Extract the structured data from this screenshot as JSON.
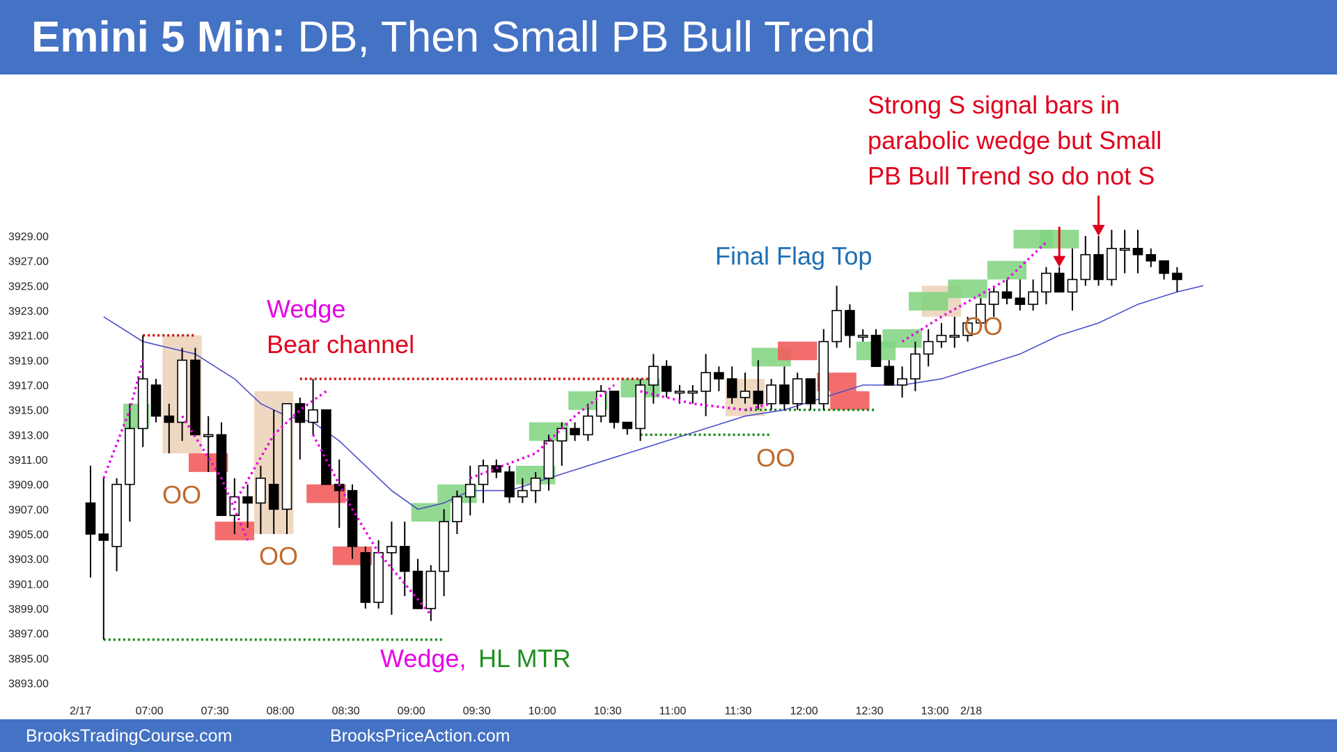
{
  "header": {
    "title_bold": "Emini 5 Min:",
    "title_rest": "DB, Then Small PB Bull Trend"
  },
  "footer": {
    "left": "BrooksTradingCourse.com",
    "right": "BrooksPriceAction.com"
  },
  "colors": {
    "header_bg": "#4472C4",
    "ema": "#4B4FC9",
    "bull_box": "#7FD37F",
    "bear_box": "#F25D5D",
    "oo_box": "#E9CBAE",
    "magenta": "#E600E6",
    "red_text": "#E0001B",
    "blue_text": "#1F6FB4",
    "orange_text": "#C0692A",
    "green_text": "#1F8F1F",
    "dotted_red": "#D01010",
    "dotted_green": "#1A8A1A"
  },
  "chart_data": {
    "type": "candlestick",
    "ylim": [
      3893,
      3931
    ],
    "y_ticks": [
      "3929.00",
      "3927.00",
      "3925.00",
      "3923.00",
      "3921.00",
      "3919.00",
      "3917.00",
      "3915.00",
      "3913.00",
      "3911.00",
      "3909.00",
      "3907.00",
      "3905.00",
      "3903.00",
      "3901.00",
      "3899.00",
      "3897.00",
      "3895.00",
      "3893.00"
    ],
    "x_ticks": [
      "2/17",
      "07:00",
      "07:30",
      "08:00",
      "08:30",
      "09:00",
      "09:30",
      "10:00",
      "10:30",
      "11:00",
      "11:30",
      "12:00",
      "12:30",
      "13:00",
      "2/18"
    ],
    "bars": [
      [
        3907.5,
        3910.5,
        3901.5,
        3905.0
      ],
      [
        3905.0,
        3909.5,
        3896.5,
        3904.5
      ],
      [
        3904.0,
        3909.5,
        3902.0,
        3909.0
      ],
      [
        3909.0,
        3915.5,
        3906.0,
        3913.5
      ],
      [
        3913.5,
        3921.0,
        3912.0,
        3917.5
      ],
      [
        3917.0,
        3917.5,
        3914.0,
        3914.5
      ],
      [
        3914.5,
        3915.5,
        3911.5,
        3914.0
      ],
      [
        3914.0,
        3920.0,
        3912.5,
        3919.0
      ],
      [
        3919.0,
        3920.0,
        3913.0,
        3913.0
      ],
      [
        3913.0,
        3914.5,
        3910.0,
        3913.0
      ],
      [
        3913.0,
        3914.0,
        3906.5,
        3906.5
      ],
      [
        3906.5,
        3909.5,
        3905.0,
        3908.0
      ],
      [
        3908.0,
        3909.0,
        3905.5,
        3907.5
      ],
      [
        3907.5,
        3910.5,
        3905.0,
        3909.5
      ],
      [
        3909.0,
        3915.0,
        3905.0,
        3907.0
      ],
      [
        3907.0,
        3915.5,
        3905.0,
        3915.5
      ],
      [
        3915.5,
        3916.0,
        3911.0,
        3914.0
      ],
      [
        3914.0,
        3917.5,
        3913.0,
        3915.0
      ],
      [
        3915.0,
        3915.0,
        3909.0,
        3909.0
      ],
      [
        3909.0,
        3911.0,
        3905.5,
        3908.5
      ],
      [
        3908.5,
        3909.0,
        3903.0,
        3904.0
      ],
      [
        3903.5,
        3904.0,
        3899.0,
        3899.5
      ],
      [
        3899.5,
        3904.5,
        3899.0,
        3903.5
      ],
      [
        3903.5,
        3906.0,
        3898.5,
        3904.0
      ],
      [
        3904.0,
        3906.0,
        3900.0,
        3902.0
      ],
      [
        3902.0,
        3903.0,
        3899.0,
        3899.0
      ],
      [
        3899.0,
        3902.5,
        3898.0,
        3902.0
      ],
      [
        3902.0,
        3907.0,
        3900.0,
        3906.0
      ],
      [
        3906.0,
        3908.5,
        3905.0,
        3908.0
      ],
      [
        3908.0,
        3910.5,
        3906.5,
        3909.0
      ],
      [
        3909.0,
        3911.0,
        3907.5,
        3910.5
      ],
      [
        3910.5,
        3911.0,
        3909.5,
        3910.0
      ],
      [
        3910.0,
        3910.5,
        3907.5,
        3908.0
      ],
      [
        3908.0,
        3909.5,
        3907.5,
        3908.5
      ],
      [
        3908.5,
        3910.0,
        3907.5,
        3909.5
      ],
      [
        3909.5,
        3913.0,
        3908.5,
        3912.5
      ],
      [
        3912.5,
        3914.0,
        3910.5,
        3913.5
      ],
      [
        3913.5,
        3914.0,
        3912.5,
        3913.0
      ],
      [
        3913.0,
        3915.5,
        3912.5,
        3914.5
      ],
      [
        3914.5,
        3917.0,
        3914.0,
        3916.5
      ],
      [
        3916.5,
        3916.5,
        3913.5,
        3914.0
      ],
      [
        3914.0,
        3914.0,
        3913.0,
        3913.5
      ],
      [
        3913.5,
        3917.5,
        3912.5,
        3917.0
      ],
      [
        3917.0,
        3919.5,
        3915.5,
        3918.5
      ],
      [
        3918.5,
        3919.0,
        3916.0,
        3916.5
      ],
      [
        3916.5,
        3917.0,
        3915.5,
        3916.5
      ],
      [
        3916.5,
        3917.0,
        3915.5,
        3916.5
      ],
      [
        3916.5,
        3919.5,
        3914.5,
        3918.0
      ],
      [
        3918.0,
        3918.5,
        3916.5,
        3917.5
      ],
      [
        3917.5,
        3918.5,
        3915.5,
        3916.0
      ],
      [
        3916.0,
        3918.0,
        3915.5,
        3916.5
      ],
      [
        3916.5,
        3919.0,
        3915.0,
        3915.5
      ],
      [
        3915.5,
        3917.5,
        3915.0,
        3917.0
      ],
      [
        3917.0,
        3918.5,
        3915.0,
        3915.5
      ],
      [
        3915.5,
        3918.0,
        3915.0,
        3917.5
      ],
      [
        3917.5,
        3917.5,
        3915.0,
        3915.5
      ],
      [
        3915.5,
        3921.5,
        3915.0,
        3920.5
      ],
      [
        3920.5,
        3925.0,
        3920.0,
        3923.0
      ],
      [
        3923.0,
        3923.5,
        3920.0,
        3921.0
      ],
      [
        3921.0,
        3921.5,
        3920.5,
        3921.0
      ],
      [
        3921.0,
        3921.5,
        3918.5,
        3918.5
      ],
      [
        3918.5,
        3919.0,
        3917.0,
        3917.0
      ],
      [
        3917.0,
        3918.5,
        3916.0,
        3917.5
      ],
      [
        3917.5,
        3920.5,
        3916.5,
        3919.5
      ],
      [
        3919.5,
        3921.5,
        3918.5,
        3920.5
      ],
      [
        3920.5,
        3922.0,
        3920.0,
        3921.0
      ],
      [
        3921.0,
        3922.5,
        3920.0,
        3921.0
      ],
      [
        3921.0,
        3922.5,
        3920.5,
        3922.0
      ],
      [
        3922.0,
        3924.0,
        3921.5,
        3923.5
      ],
      [
        3923.5,
        3925.0,
        3922.5,
        3924.5
      ],
      [
        3924.5,
        3925.5,
        3923.5,
        3924.0
      ],
      [
        3924.0,
        3925.5,
        3923.0,
        3923.5
      ],
      [
        3923.5,
        3925.5,
        3923.0,
        3924.5
      ],
      [
        3924.5,
        3926.5,
        3923.5,
        3926.0
      ],
      [
        3926.0,
        3926.5,
        3924.5,
        3924.5
      ],
      [
        3924.5,
        3928.0,
        3923.0,
        3925.5
      ],
      [
        3925.5,
        3929.0,
        3925.0,
        3927.5
      ],
      [
        3927.5,
        3929.0,
        3925.0,
        3925.5
      ],
      [
        3925.5,
        3929.5,
        3925.0,
        3928.0
      ],
      [
        3928.0,
        3929.5,
        3926.0,
        3928.0
      ],
      [
        3928.0,
        3929.5,
        3926.0,
        3927.5
      ],
      [
        3927.5,
        3928.0,
        3926.5,
        3927.0
      ],
      [
        3927.0,
        3927.0,
        3925.5,
        3926.0
      ],
      [
        3926.0,
        3926.5,
        3924.5,
        3925.5
      ]
    ],
    "ema": [
      [
        1,
        3922.5
      ],
      [
        4,
        3920.5
      ],
      [
        8,
        3919.5
      ],
      [
        11,
        3917.5
      ],
      [
        13,
        3915.5
      ],
      [
        15,
        3914.5
      ],
      [
        17,
        3914.0
      ],
      [
        19,
        3912.5
      ],
      [
        21,
        3910.5
      ],
      [
        23,
        3908.5
      ],
      [
        25,
        3907.0
      ],
      [
        27,
        3907.5
      ],
      [
        29,
        3908.5
      ],
      [
        32,
        3908.5
      ],
      [
        35,
        3909.5
      ],
      [
        38,
        3910.5
      ],
      [
        41,
        3911.5
      ],
      [
        44,
        3912.5
      ],
      [
        47,
        3913.5
      ],
      [
        50,
        3914.5
      ],
      [
        53,
        3915.0
      ],
      [
        56,
        3916.0
      ],
      [
        59,
        3917.0
      ],
      [
        62,
        3917.0
      ],
      [
        65,
        3917.5
      ],
      [
        68,
        3918.5
      ],
      [
        71,
        3919.5
      ],
      [
        74,
        3921.0
      ],
      [
        77,
        3922.0
      ],
      [
        80,
        3923.5
      ],
      [
        83,
        3924.5
      ],
      [
        85,
        3925.0
      ]
    ],
    "boxes": [
      {
        "kind": "bull",
        "b": 3,
        "w": 2,
        "lo": 3913.5,
        "hi": 3915.5
      },
      {
        "kind": "oo",
        "b": 6,
        "w": 3,
        "lo": 3911.5,
        "hi": 3921.0
      },
      {
        "kind": "bear",
        "b": 8,
        "w": 3,
        "lo": 3910.0,
        "hi": 3911.5
      },
      {
        "kind": "bear",
        "b": 10,
        "w": 3,
        "lo": 3904.5,
        "hi": 3906.0
      },
      {
        "kind": "oo",
        "b": 13,
        "w": 3,
        "lo": 3905.0,
        "hi": 3916.5
      },
      {
        "kind": "bear",
        "b": 17,
        "w": 3,
        "lo": 3907.5,
        "hi": 3909.0
      },
      {
        "kind": "bear",
        "b": 19,
        "w": 3,
        "lo": 3902.5,
        "hi": 3904.0
      },
      {
        "kind": "bull",
        "b": 25,
        "w": 3,
        "lo": 3906.0,
        "hi": 3907.5
      },
      {
        "kind": "bull",
        "b": 27,
        "w": 3,
        "lo": 3907.5,
        "hi": 3909.0
      },
      {
        "kind": "bull",
        "b": 33,
        "w": 3,
        "lo": 3909.0,
        "hi": 3910.5
      },
      {
        "kind": "bull",
        "b": 34,
        "w": 3,
        "lo": 3912.5,
        "hi": 3914.0
      },
      {
        "kind": "bull",
        "b": 37,
        "w": 3,
        "lo": 3915.0,
        "hi": 3916.5
      },
      {
        "kind": "bull",
        "b": 41,
        "w": 3,
        "lo": 3916.0,
        "hi": 3917.5
      },
      {
        "kind": "oo",
        "b": 49,
        "w": 3,
        "lo": 3914.5,
        "hi": 3917.5
      },
      {
        "kind": "bull",
        "b": 51,
        "w": 3,
        "lo": 3918.5,
        "hi": 3920.0
      },
      {
        "kind": "bear",
        "b": 53,
        "w": 3,
        "lo": 3919.0,
        "hi": 3920.5
      },
      {
        "kind": "bear",
        "b": 56,
        "w": 3,
        "lo": 3916.5,
        "hi": 3918.0
      },
      {
        "kind": "bear",
        "b": 57,
        "w": 3,
        "lo": 3915.0,
        "hi": 3916.5
      },
      {
        "kind": "bull",
        "b": 59,
        "w": 3,
        "lo": 3919.0,
        "hi": 3920.5
      },
      {
        "kind": "bull",
        "b": 61,
        "w": 3,
        "lo": 3920.0,
        "hi": 3921.5
      },
      {
        "kind": "oo",
        "b": 64,
        "w": 3,
        "lo": 3922.5,
        "hi": 3925.0
      },
      {
        "kind": "bull",
        "b": 63,
        "w": 3,
        "lo": 3923.0,
        "hi": 3924.5
      },
      {
        "kind": "bull",
        "b": 66,
        "w": 3,
        "lo": 3924.0,
        "hi": 3925.5
      },
      {
        "kind": "bull",
        "b": 69,
        "w": 3,
        "lo": 3925.5,
        "hi": 3927.0
      },
      {
        "kind": "bull",
        "b": 71,
        "w": 3,
        "lo": 3928.0,
        "hi": 3929.5
      },
      {
        "kind": "bull",
        "b": 73,
        "w": 3,
        "lo": 3928.0,
        "hi": 3929.5
      }
    ],
    "dotted_lines": [
      {
        "color": "red",
        "b1": 4,
        "b2": 8,
        "y": 3921.0
      },
      {
        "color": "red",
        "b1": 16,
        "b2": 43,
        "y": 3917.5
      },
      {
        "color": "green",
        "b1": 1,
        "b2": 27,
        "y": 3896.5
      },
      {
        "color": "green",
        "b1": 42,
        "b2": 52,
        "y": 3913.0
      },
      {
        "color": "green",
        "b1": 50,
        "b2": 60,
        "y": 3915.0
      }
    ],
    "magenta_lines": [
      [
        [
          1,
          3909.5
        ],
        [
          3,
          3915.0
        ],
        [
          4,
          3919.0
        ]
      ],
      [
        [
          7,
          3914.5
        ],
        [
          10,
          3909.5
        ],
        [
          12,
          3904.5
        ]
      ],
      [
        [
          11,
          3907.5
        ],
        [
          14,
          3913.0
        ],
        [
          16,
          3915.0
        ],
        [
          18,
          3916.5
        ]
      ],
      [
        [
          17,
          3913.0
        ],
        [
          20,
          3907.0
        ],
        [
          22,
          3903.5
        ],
        [
          26,
          3898.5
        ]
      ],
      [
        [
          29,
          3909.5
        ],
        [
          34,
          3911.5
        ],
        [
          37,
          3914.5
        ],
        [
          40,
          3917.0
        ]
      ],
      [
        [
          42,
          3916.5
        ],
        [
          46,
          3915.5
        ],
        [
          50,
          3915.0
        ],
        [
          52,
          3915.5
        ]
      ],
      [
        [
          62,
          3920.5
        ],
        [
          65,
          3922.5
        ],
        [
          70,
          3925.5
        ],
        [
          73,
          3928.5
        ]
      ]
    ],
    "arrows": [
      {
        "b": 74,
        "y": 3926.5
      },
      {
        "b": 77,
        "y": 3929.0
      }
    ],
    "annotations": {
      "signal_1": "Strong S signal bars in",
      "signal_2": "parabolic wedge but Small",
      "signal_3": "PB Bull Trend so do not S",
      "final_flag": "Final Flag Top",
      "wedge": "Wedge",
      "bear_channel": "Bear channel",
      "wedge_hl_1": "Wedge,",
      "wedge_hl_2": "HL MTR",
      "oo": "OO"
    }
  }
}
